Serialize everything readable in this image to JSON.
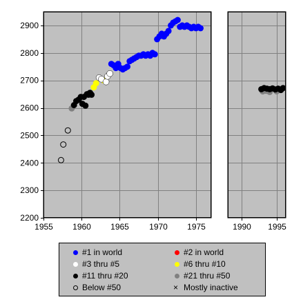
{
  "chart_data": {
    "type": "scatter",
    "title": "",
    "xlabel": "",
    "ylabel": "",
    "ylim": [
      2200,
      2950
    ],
    "grid": true,
    "legend_position": "bottom",
    "panels": [
      {
        "xlim": [
          1955,
          1977
        ],
        "xticks": [
          "1955",
          "1960",
          "1965",
          "1970",
          "1975"
        ]
      },
      {
        "xlim": [
          1988,
          1996.3
        ],
        "xticks": [
          "1990",
          "1995"
        ]
      }
    ],
    "yticks": [
      "2200",
      "2300",
      "2400",
      "2500",
      "2600",
      "2700",
      "2800",
      "2900"
    ],
    "colors": {
      "c1": "#0000ff",
      "c2": "#ff0000",
      "c3": "#ffffff",
      "c6": "#ffff00",
      "c11": "#000000",
      "c21": "#808080",
      "below": "#ffffff"
    },
    "legend": [
      {
        "key": "c1",
        "label": "#1 in world"
      },
      {
        "key": "c2",
        "label": "#2 in world"
      },
      {
        "key": "c3",
        "label": "#3 thru #5"
      },
      {
        "key": "c6",
        "label": "#6 thru #10"
      },
      {
        "key": "c11",
        "label": "#11 thru #20"
      },
      {
        "key": "c21",
        "label": "#21 thru #50"
      },
      {
        "key": "below",
        "label": "Below #50"
      },
      {
        "key": "inactive",
        "label": "Mostly inactive"
      }
    ],
    "series": [
      {
        "cat": "below",
        "x": [
          1957.3,
          1957.6,
          1958.2
        ],
        "y": [
          2410,
          2467,
          2518
        ]
      },
      {
        "cat": "c21",
        "x": [
          1958.7,
          1993.0,
          1993.5,
          1994.0,
          1995.0
        ],
        "y": [
          2598,
          2660,
          2662,
          2658,
          2660
        ]
      },
      {
        "cat": "c11",
        "x": [
          1959.0,
          1959.3,
          1959.6,
          1959.9,
          1960.1,
          1960.3,
          1960.5,
          1960.7,
          1960.9,
          1961.1,
          1961.3,
          1992.8,
          1993.2,
          1993.6,
          1994.0,
          1994.4,
          1994.8,
          1995.2,
          1995.6,
          1995.9
        ],
        "y": [
          2610,
          2625,
          2630,
          2640,
          2615,
          2640,
          2608,
          2650,
          2648,
          2655,
          2648,
          2668,
          2672,
          2670,
          2668,
          2671,
          2667,
          2670,
          2665,
          2672
        ]
      },
      {
        "cat": "c6",
        "x": [
          1961.6,
          1961.9,
          1962.9
        ],
        "y": [
          2675,
          2690,
          2700
        ]
      },
      {
        "cat": "c3",
        "x": [
          1962.3,
          1962.6,
          1963.2,
          1963.4,
          1963.7
        ],
        "y": [
          2710,
          2705,
          2695,
          2715,
          2725
        ]
      },
      {
        "cat": "c1",
        "x": [
          1963.9,
          1964.2,
          1964.5,
          1964.8,
          1965.1,
          1965.4,
          1965.7,
          1966.0,
          1966.3,
          1966.6,
          1966.9,
          1967.2,
          1967.5,
          1967.8,
          1968.1,
          1968.4,
          1968.7,
          1969.0,
          1969.3,
          1969.6,
          1969.9,
          1970.2,
          1970.5,
          1970.8,
          1971.1,
          1971.4,
          1971.7,
          1972.0,
          1972.3,
          1972.6,
          1972.9,
          1973.2,
          1973.5,
          1973.8,
          1974.1,
          1974.4,
          1974.7,
          1975.0,
          1975.3,
          1975.6
        ],
        "y": [
          2760,
          2755,
          2745,
          2760,
          2745,
          2740,
          2745,
          2750,
          2770,
          2775,
          2780,
          2785,
          2790,
          2790,
          2795,
          2790,
          2795,
          2790,
          2800,
          2795,
          2850,
          2860,
          2870,
          2860,
          2870,
          2880,
          2900,
          2910,
          2915,
          2920,
          2895,
          2900,
          2895,
          2900,
          2895,
          2890,
          2895,
          2890,
          2895,
          2890
        ]
      }
    ]
  }
}
